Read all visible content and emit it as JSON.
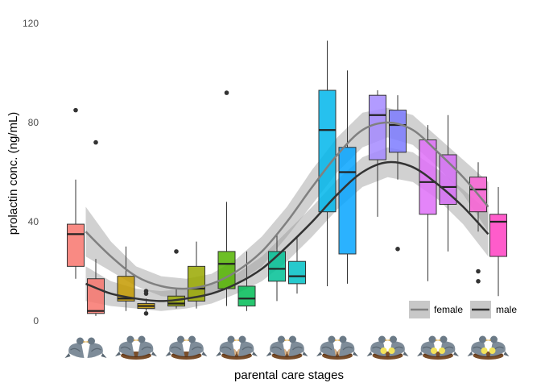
{
  "chart_data": {
    "type": "box",
    "xlabel": "parental care stages",
    "ylabel": "prolactin conc. (ng/mL)",
    "ylim": [
      0,
      120
    ],
    "yticks": [
      0,
      40,
      80,
      120
    ],
    "grid": false,
    "legend": {
      "position": "bottom-right",
      "entries": [
        {
          "name": "female",
          "color": "#808080"
        },
        {
          "name": "male",
          "color": "#333333"
        }
      ]
    },
    "stages": [
      {
        "icon": "two-pigeons-icon"
      },
      {
        "icon": "pigeons-on-nest-icon"
      },
      {
        "icon": "pigeons-on-nest-icon"
      },
      {
        "icon": "pigeons-nest-eggs-icon"
      },
      {
        "icon": "pigeons-nest-eggs-icon"
      },
      {
        "icon": "pigeons-nest-eggs-icon"
      },
      {
        "icon": "pigeons-nest-chicks-icon"
      },
      {
        "icon": "pigeons-nest-chicks-icon"
      },
      {
        "icon": "pigeons-nest-chicks-icon"
      }
    ],
    "boxes": [
      {
        "stage": 0,
        "sex": "female",
        "color": "#F8766D",
        "q1": 22,
        "median": 35,
        "q3": 39,
        "whisker_low": 17,
        "whisker_high": 57,
        "outliers": [
          85
        ]
      },
      {
        "stage": 0,
        "sex": "male",
        "color": "#F8766D",
        "q1": 3,
        "median": 4,
        "q3": 17,
        "whisker_low": 2,
        "whisker_high": 25,
        "outliers": [
          72
        ]
      },
      {
        "stage": 1,
        "sex": "female",
        "color": "#C49A00",
        "q1": 8,
        "median": 9,
        "q3": 18,
        "whisker_low": 4,
        "whisker_high": 30,
        "outliers": []
      },
      {
        "stage": 1,
        "sex": "male",
        "color": "#C49A00",
        "q1": 5,
        "median": 6,
        "q3": 7,
        "whisker_low": 4,
        "whisker_high": 9,
        "outliers": [
          11,
          12,
          3
        ]
      },
      {
        "stage": 2,
        "sex": "female",
        "color": "#99A800",
        "q1": 6,
        "median": 7,
        "q3": 10,
        "whisker_low": 5,
        "whisker_high": 13,
        "outliers": [
          28
        ]
      },
      {
        "stage": 2,
        "sex": "male",
        "color": "#99A800",
        "q1": 8,
        "median": 13,
        "q3": 22,
        "whisker_low": 5,
        "whisker_high": 32,
        "outliers": []
      },
      {
        "stage": 3,
        "sex": "female",
        "color": "#53B400",
        "q1": 13,
        "median": 23,
        "q3": 28,
        "whisker_low": 6,
        "whisker_high": 48,
        "outliers": [
          92
        ]
      },
      {
        "stage": 3,
        "sex": "male",
        "color": "#00BC56",
        "q1": 6,
        "median": 9,
        "q3": 14,
        "whisker_low": 4,
        "whisker_high": 28,
        "outliers": []
      },
      {
        "stage": 4,
        "sex": "female",
        "color": "#00C094",
        "q1": 16,
        "median": 21,
        "q3": 28,
        "whisker_low": 8,
        "whisker_high": 35,
        "outliers": []
      },
      {
        "stage": 4,
        "sex": "male",
        "color": "#00BFC4",
        "q1": 15,
        "median": 18,
        "q3": 24,
        "whisker_low": 11,
        "whisker_high": 34,
        "outliers": []
      },
      {
        "stage": 5,
        "sex": "female",
        "color": "#00B6EB",
        "q1": 44,
        "median": 77,
        "q3": 93,
        "whisker_low": 14,
        "whisker_high": 113,
        "outliers": []
      },
      {
        "stage": 5,
        "sex": "male",
        "color": "#06A4FF",
        "q1": 27,
        "median": 60,
        "q3": 70,
        "whisker_low": 15,
        "whisker_high": 101,
        "outliers": []
      },
      {
        "stage": 6,
        "sex": "female",
        "color": "#A58AFF",
        "q1": 65,
        "median": 83,
        "q3": 91,
        "whisker_low": 42,
        "whisker_high": 93,
        "outliers": []
      },
      {
        "stage": 6,
        "sex": "male",
        "color": "#7C7BFF",
        "q1": 68,
        "median": 79,
        "q3": 85,
        "whisker_low": 57,
        "whisker_high": 91,
        "outliers": [
          29
        ]
      },
      {
        "stage": 7,
        "sex": "female",
        "color": "#DF70F8",
        "q1": 43,
        "median": 56,
        "q3": 73,
        "whisker_low": 16,
        "whisker_high": 79,
        "outliers": []
      },
      {
        "stage": 7,
        "sex": "male",
        "color": "#D66DF6",
        "q1": 47,
        "median": 54,
        "q3": 67,
        "whisker_low": 28,
        "whisker_high": 83,
        "outliers": []
      },
      {
        "stage": 8,
        "sex": "female",
        "color": "#FB61D7",
        "q1": 44,
        "median": 53,
        "q3": 58,
        "whisker_low": 36,
        "whisker_high": 64,
        "outliers": [
          20,
          16
        ]
      },
      {
        "stage": 8,
        "sex": "male",
        "color": "#FF3FC2",
        "q1": 26,
        "median": 40,
        "q3": 43,
        "whisker_low": 10,
        "whisker_high": 54,
        "outliers": []
      }
    ],
    "trend_lines": [
      {
        "name": "female",
        "color": "#808080",
        "x": [
          0,
          0.5,
          1,
          1.5,
          2,
          2.5,
          3,
          3.5,
          4,
          4.5,
          5,
          5.5,
          6,
          6.5,
          7,
          7.5,
          8
        ],
        "y": [
          36,
          26,
          18,
          14,
          13,
          15,
          20,
          28,
          40,
          54,
          67,
          77,
          80,
          77,
          68,
          58,
          46
        ],
        "ci_low": [
          26,
          20,
          14,
          10,
          9,
          11,
          15,
          22,
          34,
          47,
          60,
          70,
          74,
          71,
          62,
          51,
          36
        ],
        "ci_high": [
          46,
          32,
          22,
          18,
          17,
          19,
          25,
          34,
          46,
          61,
          74,
          84,
          86,
          83,
          74,
          65,
          56
        ]
      },
      {
        "name": "male",
        "color": "#333333",
        "x": [
          0,
          0.5,
          1,
          1.5,
          2,
          2.5,
          3,
          3.5,
          4,
          4.5,
          5,
          5.5,
          6,
          6.5,
          7,
          7.5,
          8
        ],
        "y": [
          15,
          11,
          9,
          8,
          9,
          11,
          15,
          21,
          30,
          40,
          51,
          60,
          64,
          62,
          55,
          46,
          35
        ],
        "ci_low": [
          8,
          6,
          5,
          4,
          5,
          7,
          11,
          16,
          24,
          34,
          45,
          54,
          58,
          56,
          49,
          39,
          26
        ],
        "ci_high": [
          22,
          16,
          13,
          12,
          13,
          15,
          19,
          26,
          36,
          46,
          57,
          66,
          70,
          68,
          61,
          53,
          44
        ]
      }
    ]
  }
}
